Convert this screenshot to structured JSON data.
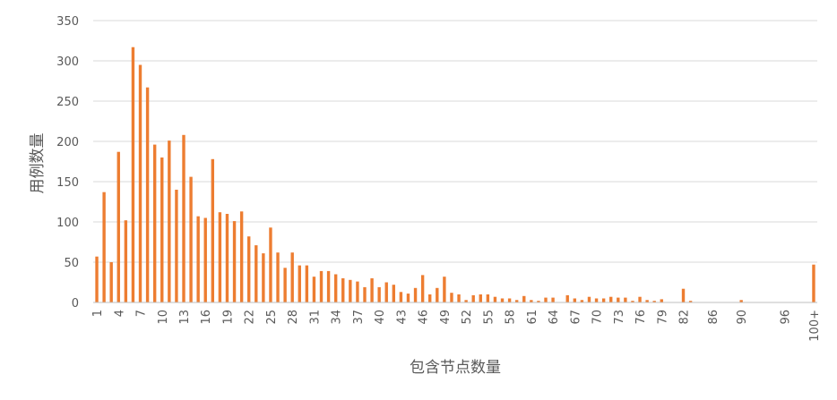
{
  "chart_data": {
    "type": "bar",
    "title": "",
    "xlabel": "包含节点数量",
    "ylabel": "用例数量",
    "ylim": [
      0,
      350
    ],
    "yticks": [
      0,
      50,
      100,
      150,
      200,
      250,
      300,
      350
    ],
    "grid": true,
    "legend": "none",
    "bar_color": "#ED7D31",
    "categories": [
      "1",
      "2",
      "3",
      "4",
      "5",
      "6",
      "7",
      "8",
      "9",
      "10",
      "11",
      "12",
      "13",
      "14",
      "15",
      "16",
      "17",
      "18",
      "19",
      "20",
      "21",
      "22",
      "23",
      "24",
      "25",
      "26",
      "27",
      "28",
      "29",
      "30",
      "31",
      "32",
      "33",
      "34",
      "35",
      "36",
      "37",
      "38",
      "39",
      "40",
      "41",
      "42",
      "43",
      "44",
      "45",
      "46",
      "47",
      "48",
      "49",
      "50",
      "51",
      "52",
      "53",
      "54",
      "55",
      "56",
      "57",
      "58",
      "59",
      "60",
      "61",
      "62",
      "63",
      "64",
      "65",
      "66",
      "67",
      "68",
      "69",
      "70",
      "71",
      "72",
      "73",
      "74",
      "75",
      "76",
      "77",
      "78",
      "79",
      "80",
      "81",
      "82",
      "83",
      "84",
      "85",
      "86",
      "87",
      "88",
      "89",
      "90",
      "91",
      "92",
      "93",
      "94",
      "95",
      "96",
      "97",
      "98",
      "99",
      "100+"
    ],
    "tick_labels": [
      "1",
      "4",
      "7",
      "10",
      "13",
      "16",
      "19",
      "22",
      "25",
      "28",
      "31",
      "34",
      "37",
      "40",
      "43",
      "46",
      "49",
      "52",
      "55",
      "58",
      "61",
      "64",
      "67",
      "70",
      "73",
      "76",
      "79",
      "82",
      "86",
      "90",
      "96",
      "100+"
    ],
    "values": [
      57,
      137,
      50,
      187,
      102,
      317,
      295,
      267,
      196,
      180,
      201,
      140,
      208,
      156,
      107,
      105,
      178,
      112,
      110,
      101,
      113,
      82,
      71,
      61,
      93,
      62,
      43,
      62,
      46,
      46,
      32,
      39,
      39,
      35,
      30,
      28,
      26,
      19,
      30,
      19,
      25,
      22,
      13,
      11,
      18,
      34,
      10,
      18,
      32,
      12,
      10,
      3,
      9,
      10,
      10,
      7,
      5,
      5,
      3,
      8,
      3,
      2,
      6,
      6,
      0,
      9,
      5,
      3,
      7,
      5,
      5,
      7,
      6,
      6,
      2,
      7,
      3,
      2,
      4,
      0,
      0,
      17,
      2,
      0,
      0,
      0,
      0,
      0,
      0,
      3,
      0,
      0,
      0,
      0,
      0,
      0,
      0,
      0,
      0,
      47
    ]
  }
}
